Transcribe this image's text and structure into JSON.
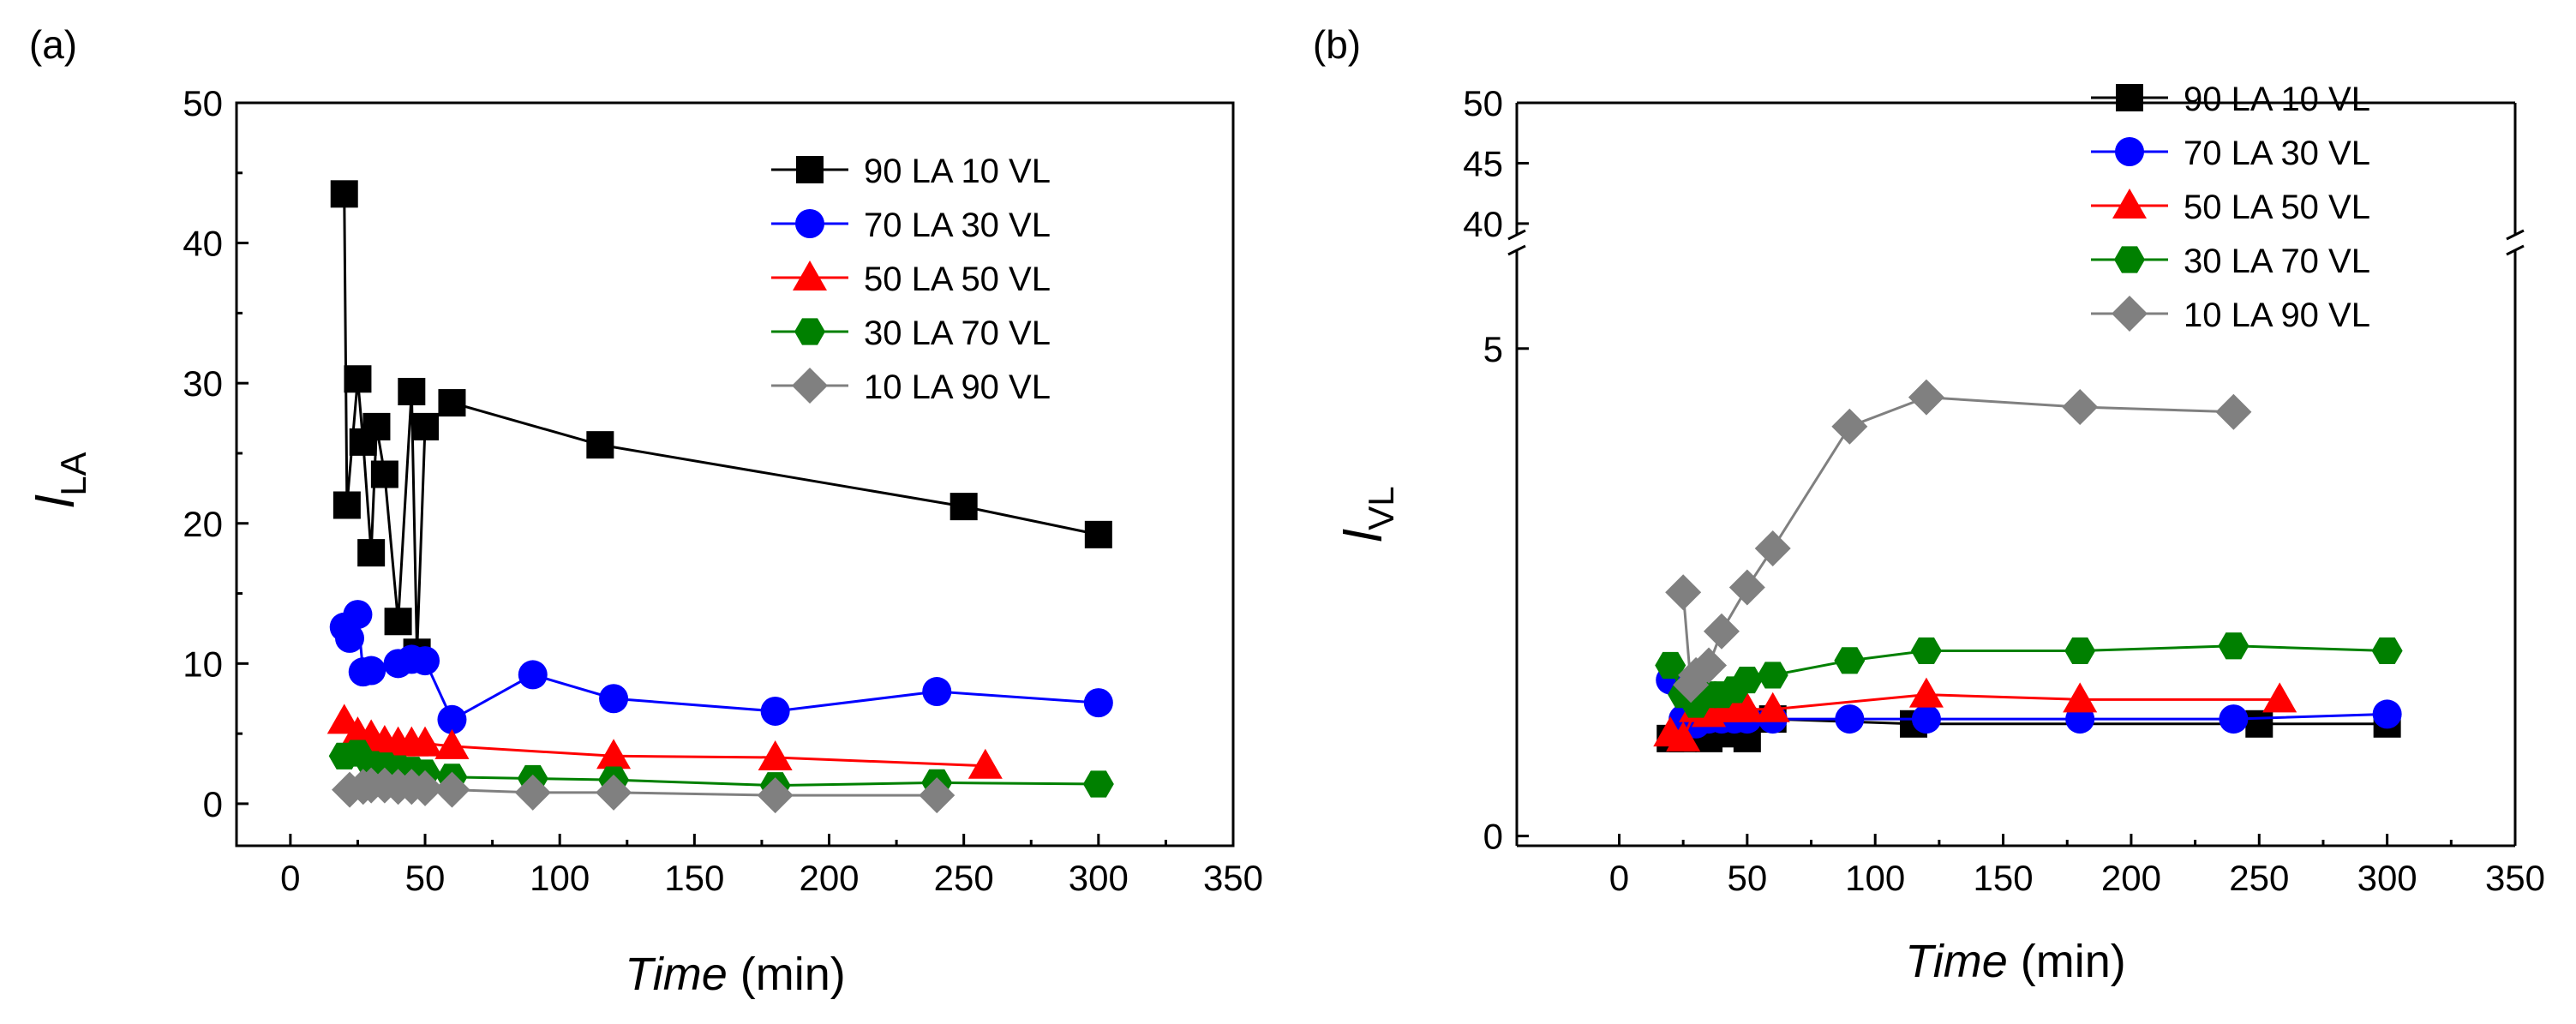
{
  "colors": {
    "s90LA10VL": "#000000",
    "s70LA30VL": "#0000ff",
    "s50LA50VL": "#ff0000",
    "s30LA70VL": "#008000",
    "s10LA90VL": "#808080"
  },
  "chart_data": [
    {
      "panel_label": "(a)",
      "type": "line",
      "xlabel_italic": "Time",
      "xlabel_unit": "(min)",
      "ylabel_main": "l",
      "ylabel_sub": "LA",
      "xlim": [
        -20,
        350
      ],
      "ylim": [
        -3,
        50
      ],
      "xticks": [
        0,
        50,
        100,
        150,
        200,
        250,
        300,
        350
      ],
      "xtick_labels": [
        "0",
        "50",
        "100",
        "150",
        "200",
        "250",
        "300",
        "350"
      ],
      "yticks": [
        0,
        10,
        20,
        30,
        40,
        50
      ],
      "ytick_labels": [
        "0",
        "10",
        "20",
        "30",
        "40",
        "50"
      ],
      "legend_position": "top-right",
      "series": [
        {
          "name": "90 LA 10 VL",
          "marker": "square",
          "color_key": "s90LA10VL",
          "x": [
            20,
            21,
            25,
            27,
            30,
            32,
            35,
            40,
            45,
            47,
            50,
            60,
            115,
            250,
            300
          ],
          "y": [
            43.5,
            21.3,
            30.3,
            25.8,
            17.9,
            26.9,
            23.5,
            13.0,
            29.4,
            10.8,
            26.9,
            28.6,
            25.6,
            21.2,
            19.2
          ]
        },
        {
          "name": "70 LA 30 VL",
          "marker": "circle",
          "color_key": "s70LA30VL",
          "x": [
            20,
            22,
            25,
            27,
            30,
            40,
            45,
            50,
            60,
            90,
            120,
            180,
            240,
            300
          ],
          "y": [
            12.6,
            11.8,
            13.5,
            9.4,
            9.5,
            10.0,
            10.3,
            10.2,
            6.0,
            9.2,
            7.5,
            6.6,
            8.0,
            7.2
          ]
        },
        {
          "name": "50 LA 50 VL",
          "marker": "triangle",
          "color_key": "s50LA50VL",
          "x": [
            20,
            25,
            30,
            35,
            40,
            45,
            50,
            60,
            120,
            180,
            258
          ],
          "y": [
            5.9,
            5.0,
            4.8,
            4.4,
            4.3,
            4.3,
            4.3,
            4.1,
            3.4,
            3.3,
            2.7
          ]
        },
        {
          "name": "30 LA 70 VL",
          "marker": "hexagon",
          "color_key": "s30LA70VL",
          "x": [
            20,
            25,
            30,
            35,
            40,
            45,
            50,
            60,
            90,
            120,
            180,
            240,
            300
          ],
          "y": [
            3.4,
            3.6,
            2.8,
            2.7,
            2.5,
            2.4,
            2.2,
            1.9,
            1.8,
            1.7,
            1.3,
            1.5,
            1.4
          ]
        },
        {
          "name": "10 LA 90 VL",
          "marker": "diamond",
          "color_key": "s10LA90VL",
          "x": [
            22,
            27,
            30,
            35,
            40,
            45,
            50,
            60,
            90,
            120,
            180,
            240
          ],
          "y": [
            1.0,
            1.2,
            1.3,
            1.3,
            1.2,
            1.2,
            1.1,
            1.0,
            0.8,
            0.8,
            0.6,
            0.6
          ]
        }
      ]
    },
    {
      "panel_label": "(b)",
      "type": "line",
      "xlabel_italic": "Time",
      "xlabel_unit": "(min)",
      "ylabel_main": "l",
      "ylabel_sub": "VL",
      "xlim": [
        -40,
        350
      ],
      "axis_break": true,
      "ylim_lower": [
        -0.1,
        6.0
      ],
      "ylim_upper": [
        39,
        50
      ],
      "xticks": [
        0,
        50,
        100,
        150,
        200,
        250,
        300,
        350
      ],
      "xtick_labels": [
        "0",
        "50",
        "100",
        "150",
        "200",
        "250",
        "300",
        "350"
      ],
      "yticks_lower": [
        0,
        5
      ],
      "ytick_labels_lower": [
        "0",
        "5"
      ],
      "yticks_upper": [
        40,
        45,
        50
      ],
      "ytick_labels_upper": [
        "40",
        "45",
        "50"
      ],
      "legend_position": "top-right",
      "series": [
        {
          "name": "90 LA 10 VL",
          "marker": "square",
          "color_key": "s90LA10VL",
          "x": [
            20,
            25,
            30,
            35,
            40,
            45,
            50,
            60,
            115,
            250,
            300
          ],
          "y": [
            1.0,
            1.0,
            1.05,
            1.0,
            1.05,
            1.05,
            1.0,
            1.2,
            1.15,
            1.15,
            1.15
          ]
        },
        {
          "name": "70 LA 30 VL",
          "marker": "circle",
          "color_key": "s70LA30VL",
          "x": [
            20,
            25,
            30,
            35,
            40,
            45,
            50,
            60,
            90,
            120,
            180,
            240,
            300
          ],
          "y": [
            1.6,
            1.2,
            1.15,
            1.2,
            1.2,
            1.2,
            1.2,
            1.2,
            1.2,
            1.2,
            1.2,
            1.2,
            1.25
          ]
        },
        {
          "name": "50 LA 50 VL",
          "marker": "triangle",
          "color_key": "s50LA50VL",
          "x": [
            20,
            25,
            30,
            35,
            40,
            45,
            50,
            60,
            120,
            180,
            258
          ],
          "y": [
            1.05,
            1.0,
            1.3,
            1.25,
            1.3,
            1.3,
            1.3,
            1.3,
            1.45,
            1.4,
            1.4
          ]
        },
        {
          "name": "30 LA 70 VL",
          "marker": "hexagon",
          "color_key": "s30LA70VL",
          "x": [
            20,
            25,
            30,
            35,
            40,
            45,
            50,
            60,
            90,
            120,
            180,
            240,
            300
          ],
          "y": [
            1.75,
            1.45,
            1.35,
            1.45,
            1.45,
            1.5,
            1.6,
            1.65,
            1.8,
            1.9,
            1.9,
            1.95,
            1.9
          ]
        },
        {
          "name": "10 LA 90 VL",
          "marker": "diamond",
          "color_key": "s10LA90VL",
          "x": [
            25,
            28,
            30,
            35,
            40,
            50,
            60,
            90,
            120,
            180,
            240
          ],
          "y": [
            2.5,
            1.55,
            1.65,
            1.75,
            2.1,
            2.55,
            2.95,
            4.2,
            4.5,
            4.4,
            4.35
          ]
        }
      ]
    }
  ]
}
